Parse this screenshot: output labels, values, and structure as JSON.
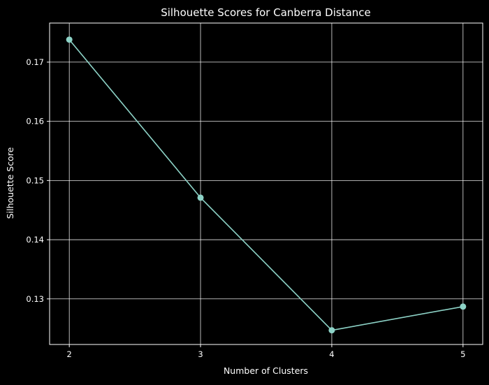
{
  "chart_data": {
    "type": "line",
    "title": "Silhouette Scores for Canberra Distance",
    "xlabel": "Number of Clusters",
    "ylabel": "Silhouette Score",
    "x": [
      2,
      3,
      4,
      5
    ],
    "xticks": [
      "2",
      "3",
      "4",
      "5"
    ],
    "xlim": [
      1.85,
      5.15
    ],
    "yticks": [
      "0.13",
      "0.14",
      "0.15",
      "0.16",
      "0.17"
    ],
    "ytick_values": [
      0.13,
      0.14,
      0.15,
      0.16,
      0.17
    ],
    "ylim": [
      0.1223,
      0.1766
    ],
    "grid": true,
    "series": [
      {
        "values": [
          0.1738,
          0.1471,
          0.1247,
          0.1287
        ],
        "color": "#8dd3c7",
        "marker": "circle"
      }
    ],
    "background": "#000000",
    "foreground": "#ffffff"
  }
}
